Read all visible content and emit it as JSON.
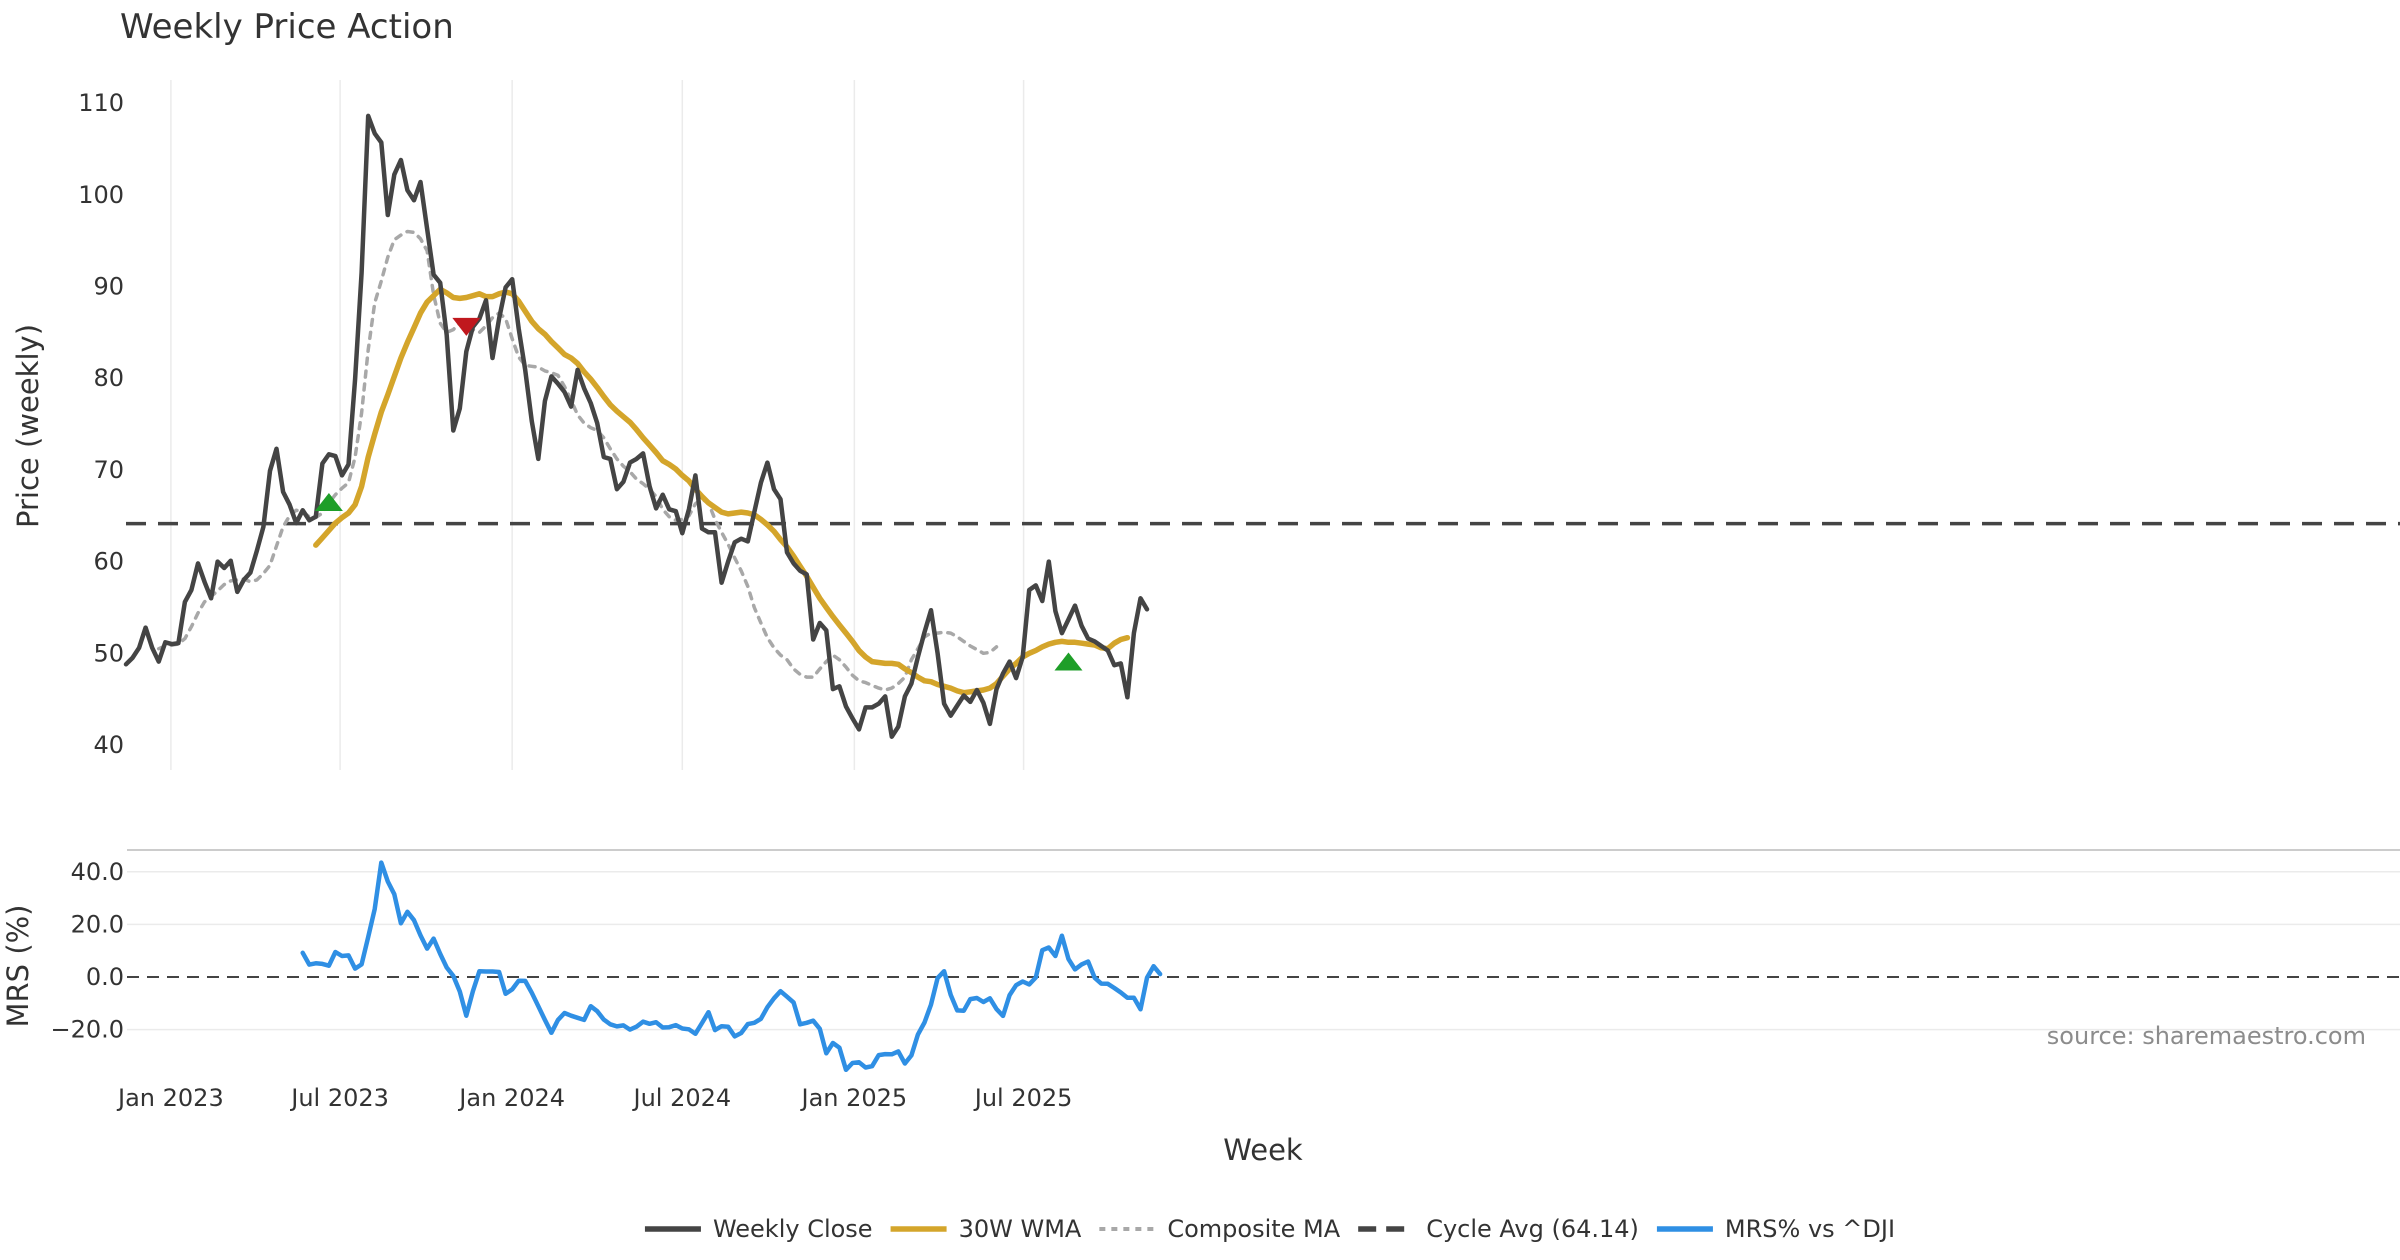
{
  "chart_data": {
    "type": "line",
    "title": "Weekly Price Action",
    "source_note": "source: sharemaestro.com",
    "xlabel": "Week",
    "x_start": "2022-11-14",
    "x_step_days": 7,
    "x_ticks": [
      {
        "date": "2023-01-01",
        "label": "Jan 2023"
      },
      {
        "date": "2023-07-01",
        "label": "Jul 2023"
      },
      {
        "date": "2024-01-01",
        "label": "Jan 2024"
      },
      {
        "date": "2024-07-01",
        "label": "Jul 2024"
      },
      {
        "date": "2025-01-01",
        "label": "Jan 2025"
      },
      {
        "date": "2025-07-01",
        "label": "Jul 2025"
      }
    ],
    "price_panel": {
      "ylabel": "Price (weekly)",
      "ylim": [
        37,
        112
      ],
      "yticks": [
        40,
        50,
        60,
        70,
        80,
        90,
        100,
        110
      ],
      "cycle_avg": 64.14,
      "series": [
        {
          "name": "Weekly Close",
          "color": "#444444",
          "style": "solid",
          "start_index": 0,
          "values": [
            48.8,
            49.5,
            50.6,
            52.8,
            50.6,
            49.1,
            51.2,
            51.0,
            51.1,
            55.6,
            56.9,
            59.8,
            57.8,
            56.0,
            60.0,
            59.3,
            60.1,
            56.7,
            58.0,
            58.8,
            61.2,
            63.8,
            69.9,
            72.3,
            67.6,
            66.2,
            64.2,
            65.6,
            64.5,
            64.9,
            70.7,
            71.7,
            71.5,
            69.4,
            70.6,
            79.9,
            91.5,
            108.6,
            106.7,
            105.7,
            97.8,
            102.2,
            103.8,
            100.5,
            99.4,
            101.4,
            96.3,
            91.3,
            90.4,
            84.7,
            74.3,
            76.7,
            82.9,
            85.6,
            86.5,
            88.5,
            82.2,
            86.5,
            89.9,
            90.8,
            85.4,
            80.9,
            75.3,
            71.2,
            77.5,
            80.2,
            79.4,
            78.5,
            76.9,
            80.9,
            78.9,
            77.3,
            75.1,
            71.4,
            71.2,
            67.9,
            68.7,
            70.8,
            71.2,
            71.8,
            68.2,
            65.8,
            67.3,
            65.7,
            65.5,
            63.1,
            65.7,
            69.4,
            63.6,
            63.2,
            63.2,
            57.7,
            60.0,
            62.1,
            62.5,
            62.2,
            65.4,
            68.6,
            70.8,
            67.9,
            66.8,
            61.0,
            59.8,
            59.0,
            58.6,
            51.5,
            53.3,
            52.5,
            46.1,
            46.4,
            44.2,
            42.9,
            41.7,
            44.1,
            44.1,
            44.5,
            45.3,
            40.9,
            42.0,
            45.3,
            46.7,
            49.6,
            52.3,
            54.7,
            50.0,
            44.5,
            43.2,
            44.3,
            45.4,
            44.7,
            46.0,
            44.6,
            42.3,
            46.1,
            47.8,
            49.1,
            47.3,
            49.6,
            56.9,
            57.4,
            55.7,
            60.0,
            54.6,
            52.2,
            53.7,
            55.2,
            53.0,
            51.6,
            51.3,
            50.8,
            50.3,
            48.7,
            48.9,
            45.2,
            52.2,
            56.0,
            54.8
          ]
        },
        {
          "name": "30W WMA",
          "color": "#d4a52b",
          "style": "solid",
          "start_index": 29,
          "values": [
            61.8,
            62.6,
            63.4,
            64.2,
            64.8,
            65.3,
            66.2,
            68.2,
            71.4,
            73.9,
            76.3,
            78.2,
            80.2,
            82.2,
            83.9,
            85.5,
            87.1,
            88.3,
            89.0,
            89.7,
            89.3,
            88.8,
            88.7,
            88.8,
            89.0,
            89.2,
            88.9,
            88.9,
            89.2,
            89.4,
            89.2,
            88.4,
            87.3,
            86.2,
            85.4,
            84.8,
            84.0,
            83.3,
            82.6,
            82.2,
            81.6,
            80.7,
            79.9,
            79.0,
            78.0,
            77.1,
            76.4,
            75.8,
            75.2,
            74.4,
            73.5,
            72.7,
            71.9,
            71.0,
            70.6,
            70.1,
            69.4,
            68.8,
            67.9,
            67.1,
            66.4,
            65.9,
            65.4,
            65.2,
            65.3,
            65.4,
            65.3,
            65.1,
            64.6,
            64.0,
            63.3,
            62.4,
            61.6,
            60.6,
            59.5,
            58.4,
            57.2,
            56.0,
            55.0,
            54.0,
            53.1,
            52.2,
            51.3,
            50.3,
            49.6,
            49.1,
            49.0,
            48.9,
            48.9,
            48.8,
            48.3,
            47.9,
            47.4,
            47.0,
            46.9,
            46.6,
            46.4,
            46.2,
            45.9,
            45.7,
            45.8,
            45.9,
            46.0,
            46.2,
            46.7,
            47.5,
            48.3,
            48.9,
            49.6,
            50.0,
            50.3,
            50.7,
            51.0,
            51.2,
            51.3,
            51.2,
            51.2,
            51.1,
            51.0,
            50.9,
            50.6,
            50.5,
            51.1,
            51.5,
            51.7
          ]
        },
        {
          "name": "Composite MA",
          "color": "#a8a8a8",
          "style": "dotted",
          "start_index": 5,
          "values": [
            50.5,
            50.8,
            50.9,
            51.0,
            51.6,
            52.9,
            54.4,
            55.6,
            56.2,
            56.8,
            57.5,
            57.9,
            58.0,
            58.1,
            57.8,
            58.0,
            58.7,
            59.6,
            61.7,
            63.8,
            65.0,
            65.6,
            65.4,
            64.9,
            64.8,
            65.3,
            66.4,
            67.3,
            68.0,
            68.6,
            71.4,
            76.2,
            83.1,
            88.2,
            90.6,
            93.2,
            95.1,
            95.6,
            96.0,
            95.9,
            95.2,
            93.9,
            89.1,
            86.0,
            85.0,
            85.3,
            86.0,
            86.2,
            85.3,
            85.0,
            85.7,
            86.6,
            87.1,
            86.5,
            84.3,
            82.3,
            81.4,
            81.3,
            81.2,
            80.8,
            80.6,
            80.3,
            79.1,
            77.6,
            76.0,
            75.1,
            74.6,
            74.3,
            73.5,
            72.3,
            71.2,
            70.4,
            69.8,
            69.0,
            68.5,
            67.9,
            67.1,
            65.7,
            64.9,
            64.5,
            64.6,
            65.0,
            66.3,
            66.8,
            66.4,
            64.6,
            63.2,
            61.9,
            60.4,
            59.0,
            57.3,
            55.0,
            53.3,
            51.7,
            50.6,
            49.8,
            49.3,
            48.3,
            47.7,
            47.4,
            47.4,
            48.3,
            49.1,
            49.8,
            49.3,
            48.5,
            47.6,
            47.0,
            46.8,
            46.5,
            46.2,
            46.0,
            46.2,
            46.7,
            47.4,
            49.3,
            50.5,
            51.8,
            52.2,
            52.2,
            52.3,
            52.2,
            51.8,
            51.3,
            50.8,
            50.4,
            50.0,
            50.1,
            50.7
          ]
        }
      ],
      "signals": [
        {
          "type": "buy",
          "color": "#1e9e28",
          "index": 31,
          "value": 66.5
        },
        {
          "type": "sell",
          "color": "#c0181e",
          "index": 52,
          "value": 85.6
        },
        {
          "type": "buy",
          "color": "#1e9e28",
          "index": 144,
          "value": 49.1
        }
      ]
    },
    "mrs_panel": {
      "ylabel": "MRS (%)",
      "ylim": [
        -33,
        46
      ],
      "yticks": [
        40,
        20,
        0,
        -20
      ],
      "ytick_labels": [
        "40.0",
        "20.0",
        "0.0",
        "−20.0"
      ],
      "series": [
        {
          "name": "MRS% vs ^DJI",
          "color": "#2f8fe4",
          "style": "solid",
          "start_index": 27,
          "values": [
            9.2,
            4.7,
            5.2,
            5.0,
            4.3,
            9.5,
            8.0,
            8.2,
            3.2,
            4.8,
            15.2,
            25.8,
            43.5,
            36.3,
            31.5,
            20.4,
            24.8,
            21.6,
            15.8,
            10.8,
            14.6,
            8.8,
            3.6,
            0.4,
            -5.5,
            -14.7,
            -5.4,
            2.2,
            2.1,
            2.1,
            1.9,
            -6.4,
            -4.7,
            -1.4,
            -1.5,
            -6.0,
            -11.1,
            -16.3,
            -21.2,
            -16.3,
            -13.7,
            -14.7,
            -15.5,
            -16.3,
            -11.1,
            -13.0,
            -16.2,
            -18.0,
            -18.8,
            -18.4,
            -20.0,
            -18.9,
            -17.0,
            -17.8,
            -17.2,
            -19.2,
            -19.1,
            -18.3,
            -19.6,
            -19.9,
            -21.6,
            -17.5,
            -13.4,
            -20.2,
            -18.7,
            -18.9,
            -22.6,
            -21.3,
            -17.9,
            -17.4,
            -15.9,
            -11.5,
            -8.1,
            -5.4,
            -7.5,
            -9.7,
            -18.0,
            -17.4,
            -16.6,
            -19.7,
            -29.0,
            -25.1,
            -26.9,
            -35.3,
            -32.7,
            -32.4,
            -34.4,
            -33.9,
            -29.7,
            -29.3,
            -29.4,
            -28.3,
            -32.9,
            -29.8,
            -21.9,
            -17.3,
            -10.5,
            -0.4,
            2.2,
            -6.8,
            -12.7,
            -12.8,
            -8.4,
            -8.0,
            -9.5,
            -8.1,
            -12.2,
            -14.8,
            -6.9,
            -3.1,
            -1.7,
            -2.8,
            -0.2,
            10.2,
            11.2,
            8.0,
            15.7,
            6.8,
            2.9,
            4.8,
            5.9,
            -0.3,
            -2.5,
            -2.6,
            -4.2,
            -5.9,
            -7.9,
            -7.9,
            -12.3,
            -0.3,
            4.1,
            1.1
          ]
        }
      ]
    },
    "legend": {
      "placement": "bottom-center",
      "items": [
        {
          "label": "Weekly Close",
          "color": "#444444",
          "style": "solid"
        },
        {
          "label": "30W WMA",
          "color": "#d4a52b",
          "style": "solid"
        },
        {
          "label": "Composite MA",
          "color": "#a8a8a8",
          "style": "dotted"
        },
        {
          "label": "Cycle Avg (64.14)",
          "color": "#444444",
          "style": "dashed"
        },
        {
          "label": "MRS% vs ^DJI",
          "color": "#2f8fe4",
          "style": "solid"
        }
      ]
    }
  }
}
